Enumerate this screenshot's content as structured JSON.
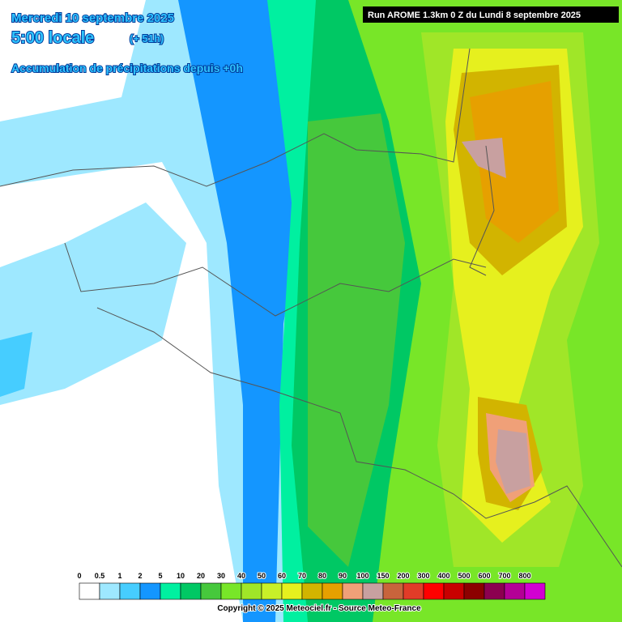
{
  "header": {
    "date": "Mercredi 10 septembre 2025",
    "time": "5:00 locale",
    "offset": "(+ 51h)",
    "subtitle": "Accumulation de précipitations depuis +0h",
    "run": "Run AROME 1.3km 0 Z du Lundi 8 septembre 2025"
  },
  "legend": {
    "items": [
      {
        "label": "0",
        "color": "#ffffff"
      },
      {
        "label": "0.5",
        "color": "#9ee8ff"
      },
      {
        "label": "1",
        "color": "#46cdff"
      },
      {
        "label": "2",
        "color": "#1496ff"
      },
      {
        "label": "5",
        "color": "#00f0a0"
      },
      {
        "label": "10",
        "color": "#00c864"
      },
      {
        "label": "20",
        "color": "#46c83c"
      },
      {
        "label": "30",
        "color": "#78e628"
      },
      {
        "label": "40",
        "color": "#a0e628"
      },
      {
        "label": "50",
        "color": "#c8f028"
      },
      {
        "label": "60",
        "color": "#e6f01e"
      },
      {
        "label": "70",
        "color": "#d2b400"
      },
      {
        "label": "80",
        "color": "#e6a000"
      },
      {
        "label": "90",
        "color": "#f0a078"
      },
      {
        "label": "100",
        "color": "#c8a0a0"
      },
      {
        "label": "150",
        "color": "#c8643c"
      },
      {
        "label": "200",
        "color": "#e13c28"
      },
      {
        "label": "300",
        "color": "#ff0000"
      },
      {
        "label": "400",
        "color": "#c80000"
      },
      {
        "label": "500",
        "color": "#8c0000"
      },
      {
        "label": "600",
        "color": "#8c0050"
      },
      {
        "label": "700",
        "color": "#b40096"
      },
      {
        "label": "800",
        "color": "#d200d2"
      }
    ]
  },
  "footer": {
    "copyright": "Copyright © 2025 Meteociel.fr - Source Meteo-France"
  }
}
